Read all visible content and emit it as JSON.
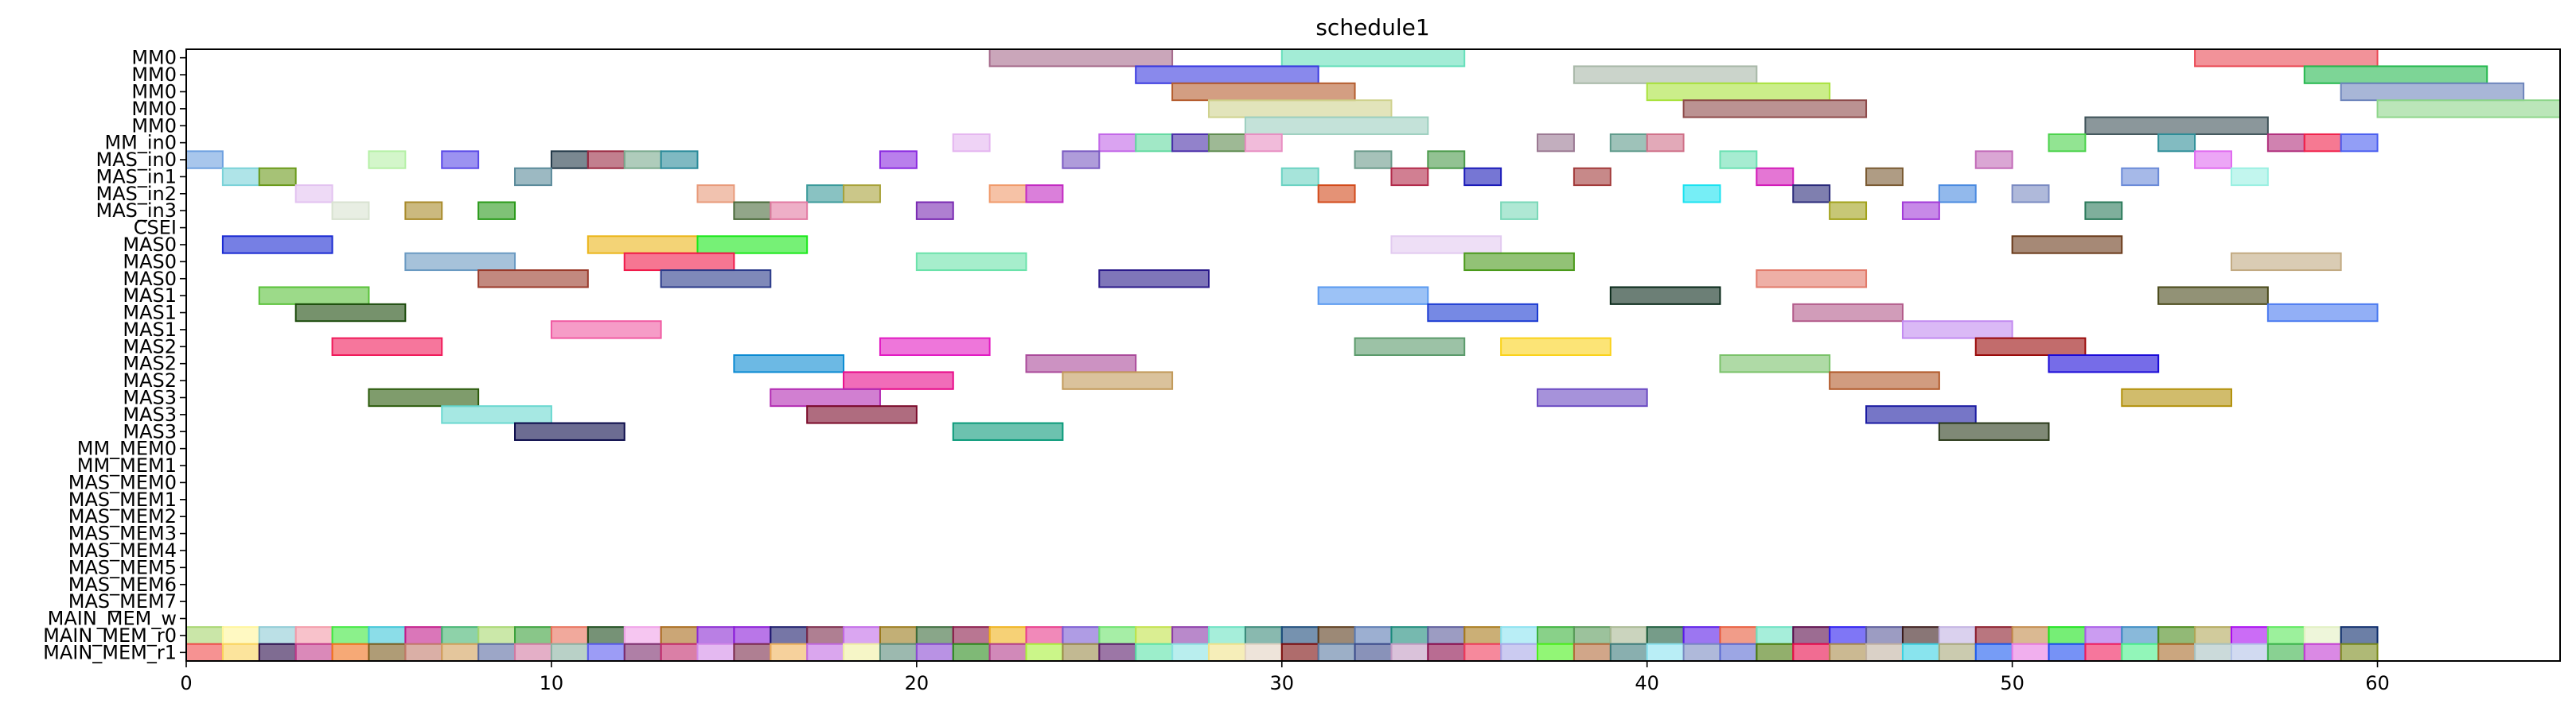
{
  "chart_data": {
    "type": "gantt",
    "title": "schedule1",
    "xlim": [
      0,
      65
    ],
    "xticks": [
      0,
      10,
      20,
      30,
      40,
      50,
      60
    ],
    "rows": [
      "MM0",
      "MM0",
      "MM0",
      "MM0",
      "MM0",
      "MM_in0",
      "MAS_in0",
      "MAS_in1",
      "MAS_in2",
      "MAS_in3",
      "CSEI",
      "MAS0",
      "MAS0",
      "MAS0",
      "MAS1",
      "MAS1",
      "MAS1",
      "MAS2",
      "MAS2",
      "MAS2",
      "MAS3",
      "MAS3",
      "MAS3",
      "MM_MEM0",
      "MM_MEM1",
      "MAS_MEM0",
      "MAS_MEM1",
      "MAS_MEM2",
      "MAS_MEM3",
      "MAS_MEM4",
      "MAS_MEM5",
      "MAS_MEM6",
      "MAS_MEM7",
      "MAIN_MEM_w",
      "MAIN_MEM_r0",
      "MAIN_MEM_r1"
    ],
    "intervals": [
      {
        "row": 0,
        "start": 22,
        "end": 27,
        "color": "#a66b8c"
      },
      {
        "row": 0,
        "start": 30,
        "end": 35,
        "color": "#66dfbb"
      },
      {
        "row": 0,
        "start": 55,
        "end": 60,
        "color": "#ea4a55"
      },
      {
        "row": 1,
        "start": 26,
        "end": 31,
        "color": "#3a3ae0"
      },
      {
        "row": 1,
        "start": 38,
        "end": 43,
        "color": "#a8b8a8"
      },
      {
        "row": 1,
        "start": 58,
        "end": 63,
        "color": "#27b950"
      },
      {
        "row": 2,
        "start": 27,
        "end": 32,
        "color": "#b55d2e"
      },
      {
        "row": 2,
        "start": 40,
        "end": 45,
        "color": "#a9e23c"
      },
      {
        "row": 2,
        "start": 59,
        "end": 64,
        "color": "#6e85bc"
      },
      {
        "row": 3,
        "start": 28,
        "end": 33,
        "color": "#cfd28e"
      },
      {
        "row": 3,
        "start": 41,
        "end": 46,
        "color": "#8e4a4a"
      },
      {
        "row": 3,
        "start": 60,
        "end": 65,
        "color": "#8ed68a"
      },
      {
        "row": 4,
        "start": 29,
        "end": 34,
        "color": "#9ccfbf"
      },
      {
        "row": 4,
        "start": 52,
        "end": 57,
        "color": "#3e5258"
      },
      {
        "row": 5,
        "start": 21,
        "end": 22,
        "color": "#e4b5f0"
      },
      {
        "row": 5,
        "start": 25,
        "end": 26,
        "color": "#c266e8"
      },
      {
        "row": 5,
        "start": 26,
        "end": 27,
        "color": "#62d9a0"
      },
      {
        "row": 5,
        "start": 27,
        "end": 28,
        "color": "#4a2ea8"
      },
      {
        "row": 5,
        "start": 28,
        "end": 29,
        "color": "#5e8a4e"
      },
      {
        "row": 5,
        "start": 29,
        "end": 30,
        "color": "#e88ec2"
      },
      {
        "row": 5,
        "start": 37,
        "end": 38,
        "color": "#9a7892"
      },
      {
        "row": 5,
        "start": 39,
        "end": 40,
        "color": "#5e9a8a"
      },
      {
        "row": 5,
        "start": 40,
        "end": 41,
        "color": "#cf7088"
      },
      {
        "row": 5,
        "start": 51,
        "end": 52,
        "color": "#4ad24a"
      },
      {
        "row": 5,
        "start": 54,
        "end": 55,
        "color": "#2e8e98"
      },
      {
        "row": 5,
        "start": 57,
        "end": 58,
        "color": "#b02e7c"
      },
      {
        "row": 5,
        "start": 58,
        "end": 59,
        "color": "#f0204a"
      },
      {
        "row": 5,
        "start": 59,
        "end": 60,
        "color": "#4a5ef0"
      },
      {
        "row": 6,
        "start": 0,
        "end": 1,
        "color": "#6ea0e0"
      },
      {
        "row": 6,
        "start": 5,
        "end": 6,
        "color": "#b5f0a6"
      },
      {
        "row": 6,
        "start": 7,
        "end": 8,
        "color": "#5a4ae8"
      },
      {
        "row": 6,
        "start": 10,
        "end": 11,
        "color": "#223848"
      },
      {
        "row": 6,
        "start": 11,
        "end": 12,
        "color": "#9a2a42"
      },
      {
        "row": 6,
        "start": 12,
        "end": 13,
        "color": "#7aaa8e"
      },
      {
        "row": 6,
        "start": 13,
        "end": 14,
        "color": "#2a8a9a"
      },
      {
        "row": 6,
        "start": 19,
        "end": 20,
        "color": "#8a2ae0"
      },
      {
        "row": 6,
        "start": 24,
        "end": 25,
        "color": "#7a5ac2"
      },
      {
        "row": 6,
        "start": 32,
        "end": 33,
        "color": "#6a9a8a"
      },
      {
        "row": 6,
        "start": 34,
        "end": 35,
        "color": "#4a9a4a"
      },
      {
        "row": 6,
        "start": 42,
        "end": 43,
        "color": "#6ae0b2"
      },
      {
        "row": 6,
        "start": 49,
        "end": 50,
        "color": "#c26ab8"
      },
      {
        "row": 6,
        "start": 55,
        "end": 56,
        "color": "#e06af0"
      },
      {
        "row": 7,
        "start": 1,
        "end": 2,
        "color": "#7ad2d8"
      },
      {
        "row": 7,
        "start": 2,
        "end": 3,
        "color": "#6a9a1a"
      },
      {
        "row": 7,
        "start": 9,
        "end": 10,
        "color": "#5a8a9a"
      },
      {
        "row": 7,
        "start": 30,
        "end": 31,
        "color": "#6ad2c2"
      },
      {
        "row": 7,
        "start": 33,
        "end": 34,
        "color": "#b22a4a"
      },
      {
        "row": 7,
        "start": 35,
        "end": 36,
        "color": "#1a1ab8"
      },
      {
        "row": 7,
        "start": 38,
        "end": 39,
        "color": "#a23a3a"
      },
      {
        "row": 7,
        "start": 43,
        "end": 44,
        "color": "#d21ab8"
      },
      {
        "row": 7,
        "start": 46,
        "end": 47,
        "color": "#7a5a32"
      },
      {
        "row": 7,
        "start": 53,
        "end": 54,
        "color": "#6a8ad8"
      },
      {
        "row": 7,
        "start": 56,
        "end": 57,
        "color": "#9af0e2"
      },
      {
        "row": 8,
        "start": 3,
        "end": 4,
        "color": "#e2c2f0"
      },
      {
        "row": 8,
        "start": 14,
        "end": 15,
        "color": "#e89a7a"
      },
      {
        "row": 8,
        "start": 17,
        "end": 18,
        "color": "#3a9a9a"
      },
      {
        "row": 8,
        "start": 18,
        "end": 19,
        "color": "#a8a23a"
      },
      {
        "row": 8,
        "start": 22,
        "end": 23,
        "color": "#f09a6a"
      },
      {
        "row": 8,
        "start": 23,
        "end": 24,
        "color": "#c22ac2"
      },
      {
        "row": 8,
        "start": 31,
        "end": 32,
        "color": "#d24a1a"
      },
      {
        "row": 8,
        "start": 41,
        "end": 42,
        "color": "#1ae2f0"
      },
      {
        "row": 8,
        "start": 44,
        "end": 45,
        "color": "#2a2a7a"
      },
      {
        "row": 8,
        "start": 48,
        "end": 49,
        "color": "#4a8ae0"
      },
      {
        "row": 8,
        "start": 50,
        "end": 51,
        "color": "#7a8ac2"
      },
      {
        "row": 9,
        "start": 4,
        "end": 5,
        "color": "#d8e2d0"
      },
      {
        "row": 9,
        "start": 6,
        "end": 7,
        "color": "#a88a2a"
      },
      {
        "row": 9,
        "start": 8,
        "end": 9,
        "color": "#2a9a1a"
      },
      {
        "row": 9,
        "start": 15,
        "end": 16,
        "color": "#4a6a3a"
      },
      {
        "row": 9,
        "start": 16,
        "end": 17,
        "color": "#e27aa2"
      },
      {
        "row": 9,
        "start": 20,
        "end": 21,
        "color": "#7a2ab2"
      },
      {
        "row": 9,
        "start": 36,
        "end": 37,
        "color": "#7ad8b8"
      },
      {
        "row": 9,
        "start": 45,
        "end": 46,
        "color": "#a2a21a"
      },
      {
        "row": 9,
        "start": 47,
        "end": 48,
        "color": "#a23ad8"
      },
      {
        "row": 9,
        "start": 52,
        "end": 53,
        "color": "#2a7a5a"
      },
      {
        "row": 11,
        "start": 1,
        "end": 4,
        "color": "#1a2ad2"
      },
      {
        "row": 11,
        "start": 11,
        "end": 14,
        "color": "#ebb51a"
      },
      {
        "row": 11,
        "start": 14,
        "end": 17,
        "color": "#1ae81a"
      },
      {
        "row": 11,
        "start": 33,
        "end": 36,
        "color": "#e2caf0"
      },
      {
        "row": 11,
        "start": 50,
        "end": 53,
        "color": "#6a3a1a"
      },
      {
        "row": 12,
        "start": 6,
        "end": 9,
        "color": "#6a9ac2"
      },
      {
        "row": 12,
        "start": 12,
        "end": 15,
        "color": "#f01a4a"
      },
      {
        "row": 12,
        "start": 20,
        "end": 23,
        "color": "#6ae2aa"
      },
      {
        "row": 12,
        "start": 35,
        "end": 38,
        "color": "#4a9a1a"
      },
      {
        "row": 12,
        "start": 56,
        "end": 59,
        "color": "#c2aa82"
      },
      {
        "row": 13,
        "start": 8,
        "end": 11,
        "color": "#9a3a2a"
      },
      {
        "row": 13,
        "start": 13,
        "end": 16,
        "color": "#2a3a8a"
      },
      {
        "row": 13,
        "start": 25,
        "end": 28,
        "color": "#2a1a8a"
      },
      {
        "row": 13,
        "start": 43,
        "end": 46,
        "color": "#e27a6a"
      },
      {
        "row": 14,
        "start": 2,
        "end": 5,
        "color": "#5ac23a"
      },
      {
        "row": 14,
        "start": 31,
        "end": 34,
        "color": "#5a9af0"
      },
      {
        "row": 14,
        "start": 39,
        "end": 42,
        "color": "#0a2a1a"
      },
      {
        "row": 14,
        "start": 54,
        "end": 57,
        "color": "#4a4a1a"
      },
      {
        "row": 15,
        "start": 3,
        "end": 6,
        "color": "#1a4a0a"
      },
      {
        "row": 15,
        "start": 34,
        "end": 37,
        "color": "#1a3ad2"
      },
      {
        "row": 15,
        "start": 44,
        "end": 47,
        "color": "#b25a8a"
      },
      {
        "row": 15,
        "start": 57,
        "end": 60,
        "color": "#4a7af0"
      },
      {
        "row": 16,
        "start": 10,
        "end": 13,
        "color": "#f05aa2"
      },
      {
        "row": 16,
        "start": 47,
        "end": 50,
        "color": "#c28af0"
      },
      {
        "row": 17,
        "start": 4,
        "end": 7,
        "color": "#f01a5a"
      },
      {
        "row": 17,
        "start": 19,
        "end": 22,
        "color": "#e21ac2"
      },
      {
        "row": 17,
        "start": 32,
        "end": 35,
        "color": "#5a9a6a"
      },
      {
        "row": 17,
        "start": 36,
        "end": 39,
        "color": "#fad21a"
      },
      {
        "row": 17,
        "start": 49,
        "end": 52,
        "color": "#9a0a0a"
      },
      {
        "row": 18,
        "start": 15,
        "end": 18,
        "color": "#0a8ad2"
      },
      {
        "row": 18,
        "start": 23,
        "end": 26,
        "color": "#aa4a9a"
      },
      {
        "row": 18,
        "start": 42,
        "end": 45,
        "color": "#7ac26a"
      },
      {
        "row": 18,
        "start": 51,
        "end": 54,
        "color": "#1a0ad8"
      },
      {
        "row": 19,
        "start": 18,
        "end": 21,
        "color": "#e80a8a"
      },
      {
        "row": 19,
        "start": 24,
        "end": 27,
        "color": "#c29a5a"
      },
      {
        "row": 19,
        "start": 45,
        "end": 48,
        "color": "#b25a2a"
      },
      {
        "row": 20,
        "start": 5,
        "end": 8,
        "color": "#2a5a0a"
      },
      {
        "row": 20,
        "start": 16,
        "end": 19,
        "color": "#b22ab2"
      },
      {
        "row": 20,
        "start": 37,
        "end": 40,
        "color": "#6a4ac2"
      },
      {
        "row": 20,
        "start": 53,
        "end": 56,
        "color": "#b2900a"
      },
      {
        "row": 21,
        "start": 7,
        "end": 10,
        "color": "#6ad8d0"
      },
      {
        "row": 21,
        "start": 17,
        "end": 20,
        "color": "#7a0a2a"
      },
      {
        "row": 21,
        "start": 46,
        "end": 49,
        "color": "#1a1aa2"
      },
      {
        "row": 22,
        "start": 9,
        "end": 12,
        "color": "#0a0a4a"
      },
      {
        "row": 22,
        "start": 21,
        "end": 24,
        "color": "#0a9a7a"
      },
      {
        "row": 22,
        "start": 48,
        "end": 51,
        "color": "#2a3a1a"
      }
    ],
    "strip_rows": [
      34,
      35
    ],
    "strip_count": 60,
    "strip_colors_r0": [
      "#a6d66e",
      "#fff59a",
      "#8ecbd6",
      "#f39aa8",
      "#3ee83e",
      "#3ec6d8",
      "#c21a8a",
      "#42b470",
      "#a8d870",
      "#3aa03a",
      "#e8705a",
      "#1a4a1a",
      "#f0a0e8",
      "#a86a1a",
      "#8a2ad2",
      "#8a1ad8",
      "#1a1a6a",
      "#7a2a4a",
      "#c26ae8",
      "#9a7a1a",
      "#3a6a3a",
      "#8a1a4a",
      "#f0b21a",
      "#e83a8a",
      "#7a5ad2",
      "#6ae26a",
      "#c2e24a",
      "#8a3aa8",
      "#6ae2c2",
      "#3a8a7a",
      "#1a4a7a",
      "#5a3a1a",
      "#5a7ab2",
      "#1a8a7a",
      "#5a5a9a",
      "#a87a1a",
      "#8ae2f0",
      "#3ab23a",
      "#5a9a5a",
      "#a8b892",
      "#1a5a3a",
      "#5a1ae8",
      "#e85a3a",
      "#6ae2c2",
      "#5a0a4a",
      "#2a1af0",
      "#5a5a9a",
      "#3a1a1a",
      "#c2b2e2",
      "#8a1a2a",
      "#c28a4a",
      "#1ae21a",
      "#a85ae8",
      "#3a8ac2",
      "#4a8a1a",
      "#b2a85a",
      "#a80af0",
      "#5ae85a",
      "#e2f0c2",
      "#0a2a6a"
    ],
    "strip_colors_r1": [
      "#f04a4a",
      "#fad25a",
      "#2a0a4a",
      "#c23a8a",
      "#f0701a",
      "#7a5a1a",
      "#c27a6a",
      "#d2a05a",
      "#5a6aa2",
      "#d27aa2",
      "#8ab2a2",
      "#5a5af0",
      "#7a2a6a",
      "#c22a6a",
      "#d28ae8",
      "#7a2a4a",
      "#f0b25a",
      "#c26ae2",
      "#f0f0a2",
      "#5a8a7a",
      "#8a4ad2",
      "#2a8a1a",
      "#b23a8a",
      "#a8f03a",
      "#9a8a4a",
      "#5a1a6a",
      "#5ae2a8",
      "#8ae2e2",
      "#f0e28a",
      "#e2d2c2",
      "#7a0a0a",
      "#5a7aa2",
      "#3a4a8a",
      "#c29ac2",
      "#8a0a4a",
      "#f03a5a",
      "#a8a8e8",
      "#4af01a",
      "#b26a3a",
      "#3a7a7a",
      "#8ae2f0",
      "#7a8ac2",
      "#5a6ad2",
      "#4a7a0a",
      "#e80a4a",
      "#a88a4a",
      "#c2b2a2",
      "#3ad2e2",
      "#a8a87a",
      "#1a5af0",
      "#e87ae2",
      "#1a4af0",
      "#f01a5a",
      "#4af08a",
      "#a86a2a",
      "#a8c2c2",
      "#b2c2e8",
      "#3ab24a",
      "#c23ad2",
      "#7a8a1a"
    ]
  }
}
